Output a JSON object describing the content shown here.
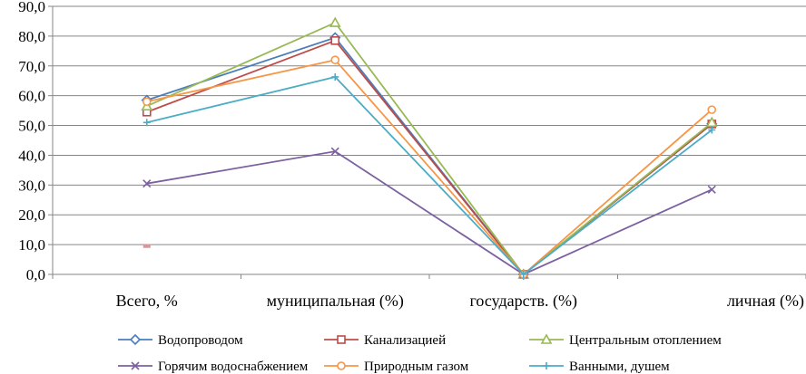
{
  "chart_data": {
    "type": "line",
    "title": "",
    "xlabel": "",
    "ylabel": "",
    "categories": [
      "Всего, %",
      "муниципальная (%)",
      "государств. (%)",
      "личная (%)"
    ],
    "ylim": [
      0,
      90
    ],
    "yticks": [
      "0,0",
      "10,0",
      "20,0",
      "30,0",
      "40,0",
      "50,0",
      "60,0",
      "70,0",
      "80,0",
      "90,0"
    ],
    "grid": true,
    "legend_position": "bottom",
    "series": [
      {
        "name": "Водопроводом",
        "values": [
          58.5,
          79.5,
          0,
          50.5
        ],
        "color": "#4a7ebb",
        "marker": "diamond"
      },
      {
        "name": "Канализацией",
        "values": [
          54.5,
          78.5,
          0,
          50.5
        ],
        "color": "#be4b48",
        "marker": "square"
      },
      {
        "name": "Центральным отоплением",
        "values": [
          56.5,
          84.5,
          0,
          51
        ],
        "color": "#98b954",
        "marker": "triangle"
      },
      {
        "name": "Горячим водоснабжением",
        "values": [
          30.5,
          41.3,
          0,
          28.5
        ],
        "color": "#7d60a0",
        "marker": "x"
      },
      {
        "name": "Природным газом",
        "values": [
          58,
          72,
          0,
          55.3
        ],
        "color": "#f79646",
        "marker": "circle"
      },
      {
        "name": "Ванными, душем",
        "values": [
          51,
          66.3,
          0,
          48.5
        ],
        "color": "#4bacc6",
        "marker": "plus"
      }
    ],
    "annotations": [
      {
        "type": "stray-marker",
        "category_index": 0,
        "value": 9.5,
        "color": "#d99694"
      }
    ]
  }
}
